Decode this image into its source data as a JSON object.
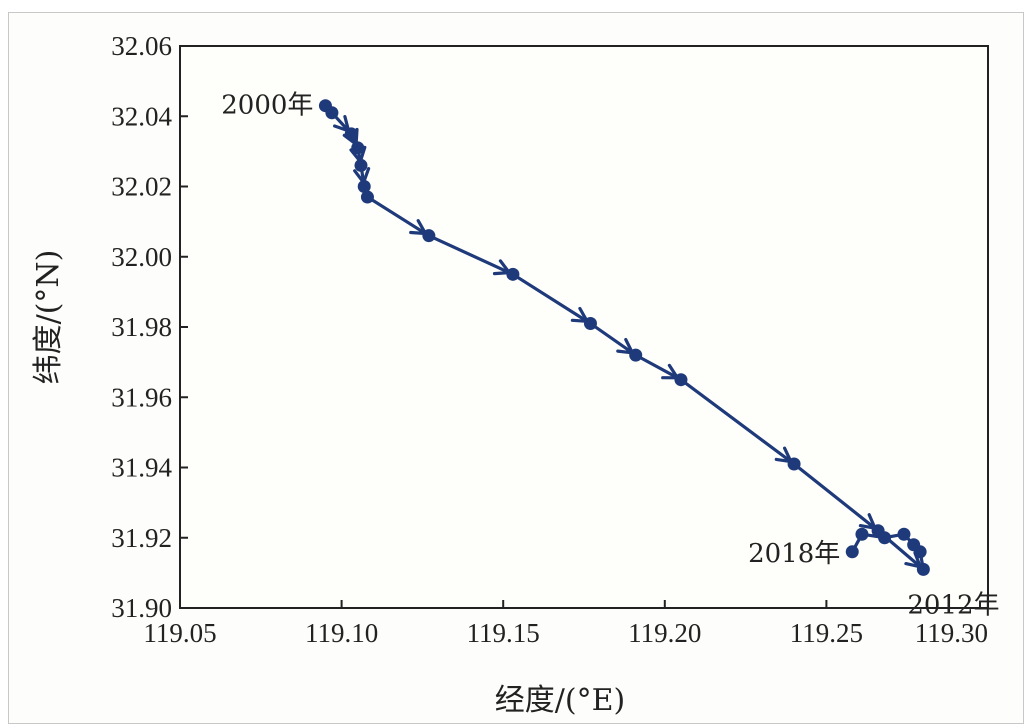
{
  "chart_data": {
    "type": "line",
    "title": "",
    "xlabel": "经度/(°E)",
    "ylabel": "纬度/(°N)",
    "xlim": [
      119.05,
      119.3
    ],
    "ylim": [
      31.9,
      32.06
    ],
    "xticks": [
      "119.05",
      "119.10",
      "119.15",
      "119.20",
      "119.25",
      "119.30"
    ],
    "yticks": [
      "31.90",
      "31.92",
      "31.94",
      "31.96",
      "31.98",
      "32.00",
      "32.02",
      "32.04",
      "32.06"
    ],
    "grid": false,
    "line_color": "#1f3a7a",
    "series": [
      {
        "name": "",
        "points": [
          {
            "x": 119.095,
            "y": 32.043
          },
          {
            "x": 119.097,
            "y": 32.041
          },
          {
            "x": 119.103,
            "y": 32.035
          },
          {
            "x": 119.105,
            "y": 32.031
          },
          {
            "x": 119.106,
            "y": 32.026
          },
          {
            "x": 119.107,
            "y": 32.02
          },
          {
            "x": 119.108,
            "y": 32.017
          },
          {
            "x": 119.127,
            "y": 32.006
          },
          {
            "x": 119.153,
            "y": 31.995
          },
          {
            "x": 119.177,
            "y": 31.981
          },
          {
            "x": 119.191,
            "y": 31.972
          },
          {
            "x": 119.205,
            "y": 31.965
          },
          {
            "x": 119.24,
            "y": 31.941
          },
          {
            "x": 119.266,
            "y": 31.922
          },
          {
            "x": 119.28,
            "y": 31.911
          },
          {
            "x": 119.279,
            "y": 31.916
          },
          {
            "x": 119.277,
            "y": 31.918
          },
          {
            "x": 119.274,
            "y": 31.921
          },
          {
            "x": 119.268,
            "y": 31.92
          },
          {
            "x": 119.261,
            "y": 31.921
          },
          {
            "x": 119.258,
            "y": 31.916
          }
        ]
      }
    ],
    "annotations": [
      {
        "text": "2000年",
        "x": 119.095,
        "y": 32.043
      },
      {
        "text": "2018年",
        "x": 119.258,
        "y": 31.916
      },
      {
        "text": "2012年",
        "x": 119.28,
        "y": 31.911
      }
    ]
  }
}
